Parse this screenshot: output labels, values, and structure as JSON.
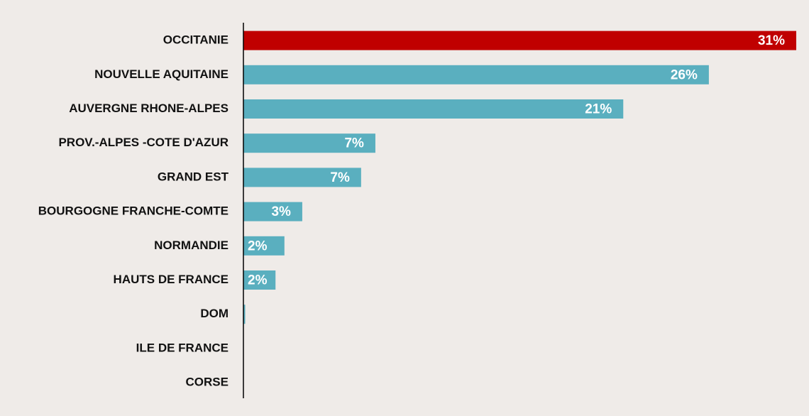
{
  "chart_data": {
    "type": "bar",
    "orientation": "horizontal",
    "categories": [
      "OCCITANIE",
      "NOUVELLE AQUITAINE",
      "AUVERGNE RHONE-ALPES",
      "PROV.-ALPES -COTE D'AZUR",
      "GRAND EST",
      "BOURGOGNE FRANCHE-COMTE",
      "NORMANDIE",
      "HAUTS DE FRANCE",
      "DOM",
      "ILE DE FRANCE",
      "CORSE"
    ],
    "values": [
      31,
      26.1,
      21.3,
      7.4,
      6.6,
      3.3,
      2.3,
      1.8,
      0.1,
      0,
      0
    ],
    "value_labels": [
      "31%",
      "26%",
      "21%",
      "7%",
      "7%",
      "3%",
      "2%",
      "2%",
      null,
      null,
      null
    ],
    "colors": [
      "#c00000",
      "#5aafbf",
      "#5aafbf",
      "#5aafbf",
      "#5aafbf",
      "#5aafbf",
      "#5aafbf",
      "#5aafbf",
      "#5aafbf",
      "#5aafbf",
      "#5aafbf"
    ]
  }
}
